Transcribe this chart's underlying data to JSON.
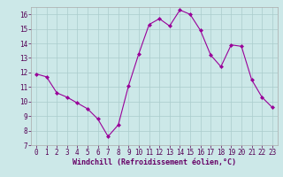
{
  "x": [
    0,
    1,
    2,
    3,
    4,
    5,
    6,
    7,
    8,
    9,
    10,
    11,
    12,
    13,
    14,
    15,
    16,
    17,
    18,
    19,
    20,
    21,
    22,
    23
  ],
  "y": [
    11.9,
    11.7,
    10.6,
    10.3,
    9.9,
    9.5,
    8.8,
    7.6,
    8.4,
    11.1,
    13.3,
    15.3,
    15.7,
    15.2,
    16.3,
    16.0,
    14.9,
    13.2,
    12.4,
    13.9,
    13.8,
    11.5,
    10.3,
    9.6
  ],
  "line_color": "#990099",
  "marker": "D",
  "marker_size": 2.0,
  "bg_color": "#cce8e8",
  "grid_color": "#aacccc",
  "xlabel": "Windchill (Refroidissement éolien,°C)",
  "xlabel_color": "#660066",
  "xlabel_fontsize": 6.0,
  "tick_fontsize": 5.5,
  "ylim": [
    7,
    16.5
  ],
  "yticks": [
    7,
    8,
    9,
    10,
    11,
    12,
    13,
    14,
    15,
    16
  ],
  "xticks": [
    0,
    1,
    2,
    3,
    4,
    5,
    6,
    7,
    8,
    9,
    10,
    11,
    12,
    13,
    14,
    15,
    16,
    17,
    18,
    19,
    20,
    21,
    22,
    23
  ],
  "xtick_labels": [
    "0",
    "1",
    "2",
    "3",
    "4",
    "5",
    "6",
    "7",
    "8",
    "9",
    "10",
    "11",
    "12",
    "13",
    "14",
    "15",
    "16",
    "17",
    "18",
    "19",
    "20",
    "21",
    "22",
    "23"
  ]
}
